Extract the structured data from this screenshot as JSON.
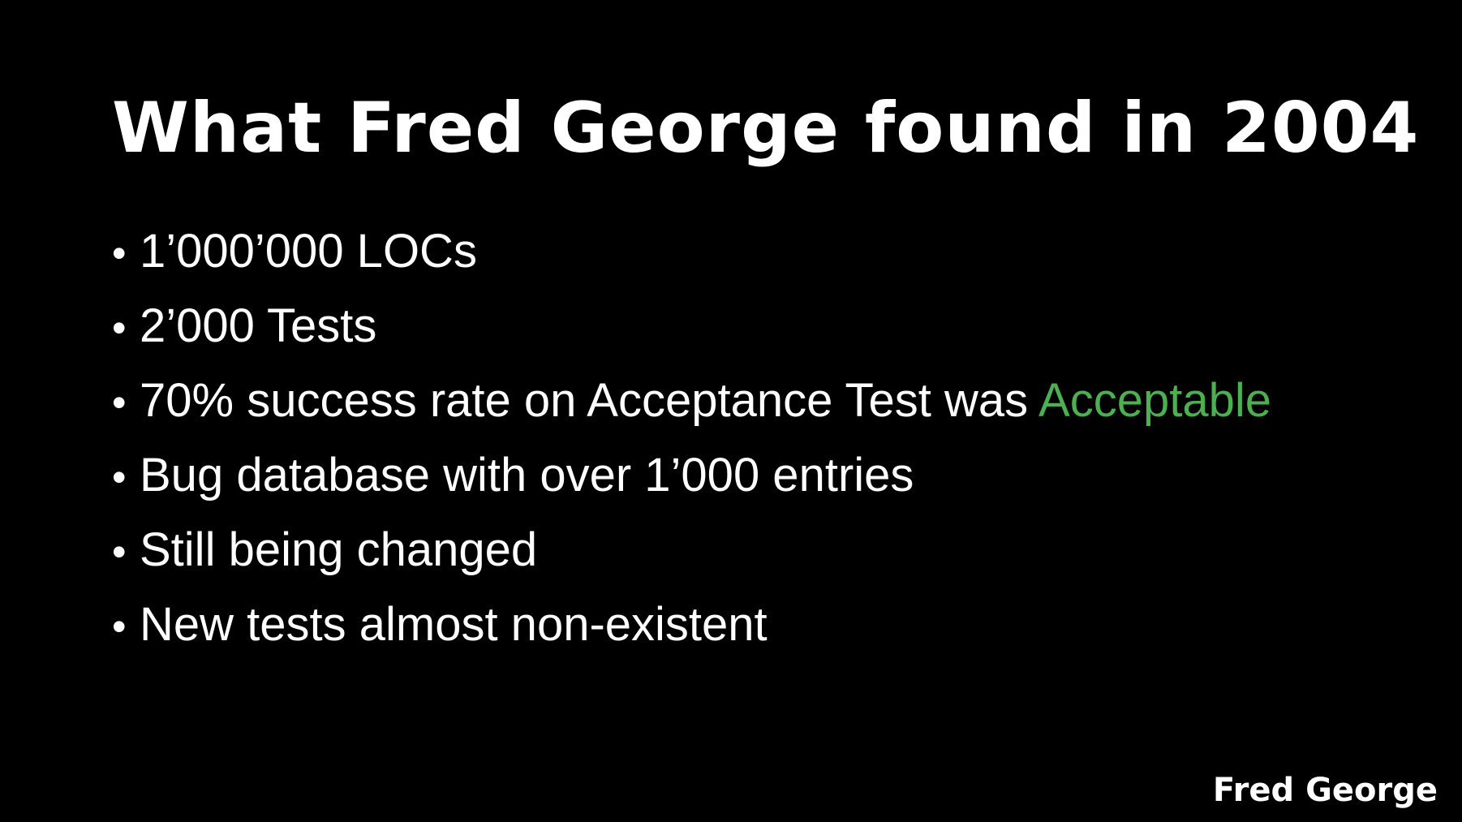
{
  "slide": {
    "title": "What Fred George found in 2004",
    "bullets": [
      {
        "text": "1’000’000 LOCs",
        "highlight": ""
      },
      {
        "text": "2’000 Tests",
        "highlight": ""
      },
      {
        "text": "70% success rate on Acceptance Test was ",
        "highlight": "Acceptable"
      },
      {
        "text": "Bug database with over 1’000 entries",
        "highlight": ""
      },
      {
        "text": "Still being changed",
        "highlight": ""
      },
      {
        "text": "New tests almost non-existent",
        "highlight": ""
      }
    ],
    "bullet_symbol": "•",
    "footer": "Fred George",
    "colors": {
      "background": "#000000",
      "text": "#ffffff",
      "highlight": "#4caf50"
    }
  }
}
